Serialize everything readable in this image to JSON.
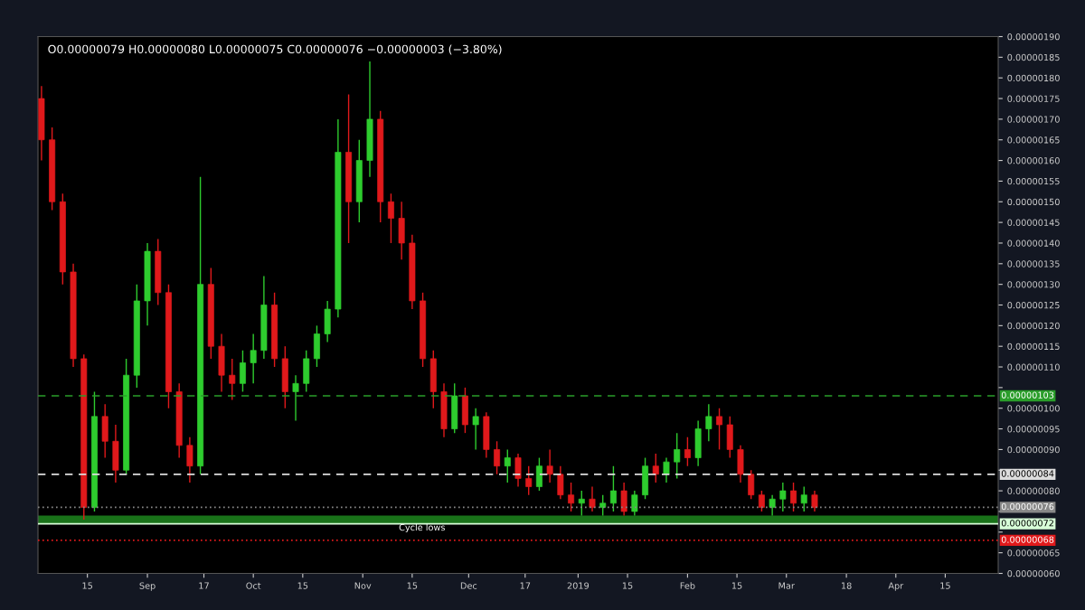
{
  "chart_data": {
    "type": "candlestick",
    "x": [
      "2018-08-02",
      "2018-08-05",
      "2018-08-08",
      "2018-08-11",
      "2018-08-14",
      "2018-08-17",
      "2018-08-20",
      "2018-08-23",
      "2018-08-26",
      "2018-08-29",
      "2018-09-01",
      "2018-09-04",
      "2018-09-07",
      "2018-09-10",
      "2018-09-13",
      "2018-09-16",
      "2018-09-19",
      "2018-09-22",
      "2018-09-25",
      "2018-09-28",
      "2018-10-01",
      "2018-10-04",
      "2018-10-07",
      "2018-10-10",
      "2018-10-13",
      "2018-10-16",
      "2018-10-19",
      "2018-10-22",
      "2018-10-25",
      "2018-10-28",
      "2018-10-31",
      "2018-11-03",
      "2018-11-06",
      "2018-11-09",
      "2018-11-12",
      "2018-11-15",
      "2018-11-18",
      "2018-11-21",
      "2018-11-24",
      "2018-11-27",
      "2018-11-30",
      "2018-12-03",
      "2018-12-06",
      "2018-12-09",
      "2018-12-12",
      "2018-12-15",
      "2018-12-18",
      "2018-12-21",
      "2018-12-24",
      "2018-12-27",
      "2018-12-30",
      "2019-01-02",
      "2019-01-05",
      "2019-01-08",
      "2019-01-11",
      "2019-01-14",
      "2019-01-17",
      "2019-01-20",
      "2019-01-23",
      "2019-01-26",
      "2019-01-29",
      "2019-02-01",
      "2019-02-04",
      "2019-02-07",
      "2019-02-10",
      "2019-02-13",
      "2019-02-16",
      "2019-02-19",
      "2019-02-22",
      "2019-02-25",
      "2019-02-28",
      "2019-03-03",
      "2019-03-06",
      "2019-03-09"
    ],
    "ohlc": [
      [
        1.75e-06,
        1.78e-06,
        1.6e-06,
        1.65e-06
      ],
      [
        1.65e-06,
        1.68e-06,
        1.48e-06,
        1.5e-06
      ],
      [
        1.5e-06,
        1.52e-06,
        1.3e-06,
        1.33e-06
      ],
      [
        1.33e-06,
        1.35e-06,
        1.1e-06,
        1.12e-06
      ],
      [
        1.12e-06,
        1.13e-06,
        7.3e-07,
        7.6e-07
      ],
      [
        7.6e-07,
        1.04e-06,
        7.5e-07,
        9.8e-07
      ],
      [
        9.8e-07,
        1.01e-06,
        8.8e-07,
        9.2e-07
      ],
      [
        9.2e-07,
        9.6e-07,
        8.2e-07,
        8.5e-07
      ],
      [
        8.5e-07,
        1.12e-06,
        8.4e-07,
        1.08e-06
      ],
      [
        1.08e-06,
        1.3e-06,
        1.05e-06,
        1.26e-06
      ],
      [
        1.26e-06,
        1.4e-06,
        1.2e-06,
        1.38e-06
      ],
      [
        1.38e-06,
        1.41e-06,
        1.25e-06,
        1.28e-06
      ],
      [
        1.28e-06,
        1.3e-06,
        1e-06,
        1.04e-06
      ],
      [
        1.04e-06,
        1.06e-06,
        8.8e-07,
        9.1e-07
      ],
      [
        9.1e-07,
        9.3e-07,
        8.2e-07,
        8.6e-07
      ],
      [
        8.6e-07,
        1.56e-06,
        8.4e-07,
        1.3e-06
      ],
      [
        1.3e-06,
        1.34e-06,
        1.12e-06,
        1.15e-06
      ],
      [
        1.15e-06,
        1.18e-06,
        1.04e-06,
        1.08e-06
      ],
      [
        1.08e-06,
        1.12e-06,
        1.02e-06,
        1.06e-06
      ],
      [
        1.06e-06,
        1.14e-06,
        1.04e-06,
        1.11e-06
      ],
      [
        1.11e-06,
        1.18e-06,
        1.06e-06,
        1.14e-06
      ],
      [
        1.14e-06,
        1.32e-06,
        1.12e-06,
        1.25e-06
      ],
      [
        1.25e-06,
        1.28e-06,
        1.1e-06,
        1.12e-06
      ],
      [
        1.12e-06,
        1.15e-06,
        1e-06,
        1.04e-06
      ],
      [
        1.04e-06,
        1.08e-06,
        9.7e-07,
        1.06e-06
      ],
      [
        1.06e-06,
        1.14e-06,
        1.04e-06,
        1.12e-06
      ],
      [
        1.12e-06,
        1.2e-06,
        1.1e-06,
        1.18e-06
      ],
      [
        1.18e-06,
        1.26e-06,
        1.16e-06,
        1.24e-06
      ],
      [
        1.24e-06,
        1.7e-06,
        1.22e-06,
        1.62e-06
      ],
      [
        1.62e-06,
        1.76e-06,
        1.4e-06,
        1.5e-06
      ],
      [
        1.5e-06,
        1.65e-06,
        1.45e-06,
        1.6e-06
      ],
      [
        1.6e-06,
        1.84e-06,
        1.56e-06,
        1.7e-06
      ],
      [
        1.7e-06,
        1.72e-06,
        1.45e-06,
        1.5e-06
      ],
      [
        1.5e-06,
        1.52e-06,
        1.4e-06,
        1.46e-06
      ],
      [
        1.46e-06,
        1.5e-06,
        1.36e-06,
        1.4e-06
      ],
      [
        1.4e-06,
        1.42e-06,
        1.24e-06,
        1.26e-06
      ],
      [
        1.26e-06,
        1.28e-06,
        1.1e-06,
        1.12e-06
      ],
      [
        1.12e-06,
        1.14e-06,
        1e-06,
        1.04e-06
      ],
      [
        1.04e-06,
        1.06e-06,
        9.3e-07,
        9.5e-07
      ],
      [
        9.5e-07,
        1.06e-06,
        9.4e-07,
        1.03e-06
      ],
      [
        1.03e-06,
        1.05e-06,
        9.4e-07,
        9.6e-07
      ],
      [
        9.6e-07,
        1e-06,
        9e-07,
        9.8e-07
      ],
      [
        9.8e-07,
        9.9e-07,
        8.8e-07,
        9e-07
      ],
      [
        9e-07,
        9.2e-07,
        8.4e-07,
        8.6e-07
      ],
      [
        8.6e-07,
        9e-07,
        8.2e-07,
        8.8e-07
      ],
      [
        8.8e-07,
        8.9e-07,
        8.1e-07,
        8.3e-07
      ],
      [
        8.3e-07,
        8.6e-07,
        7.9e-07,
        8.1e-07
      ],
      [
        8.1e-07,
        8.8e-07,
        8e-07,
        8.6e-07
      ],
      [
        8.6e-07,
        9e-07,
        8.2e-07,
        8.4e-07
      ],
      [
        8.4e-07,
        8.6e-07,
        7.8e-07,
        7.9e-07
      ],
      [
        7.9e-07,
        8.2e-07,
        7.5e-07,
        7.7e-07
      ],
      [
        7.7e-07,
        8e-07,
        7.4e-07,
        7.8e-07
      ],
      [
        7.8e-07,
        8.1e-07,
        7.5e-07,
        7.6e-07
      ],
      [
        7.6e-07,
        7.9e-07,
        7.4e-07,
        7.7e-07
      ],
      [
        7.7e-07,
        8.6e-07,
        7.5e-07,
        8e-07
      ],
      [
        8e-07,
        8.2e-07,
        7.4e-07,
        7.5e-07
      ],
      [
        7.5e-07,
        8e-07,
        7.4e-07,
        7.9e-07
      ],
      [
        7.9e-07,
        8.8e-07,
        7.8e-07,
        8.6e-07
      ],
      [
        8.6e-07,
        8.9e-07,
        8.2e-07,
        8.4e-07
      ],
      [
        8.4e-07,
        8.8e-07,
        8.2e-07,
        8.7e-07
      ],
      [
        8.7e-07,
        9.4e-07,
        8.3e-07,
        9e-07
      ],
      [
        9e-07,
        9.3e-07,
        8.6e-07,
        8.8e-07
      ],
      [
        8.8e-07,
        9.7e-07,
        8.6e-07,
        9.5e-07
      ],
      [
        9.5e-07,
        1.01e-06,
        9.2e-07,
        9.8e-07
      ],
      [
        9.8e-07,
        1e-06,
        9e-07,
        9.6e-07
      ],
      [
        9.6e-07,
        9.8e-07,
        8.8e-07,
        9e-07
      ],
      [
        9e-07,
        9.1e-07,
        8.2e-07,
        8.4e-07
      ],
      [
        8.4e-07,
        8.5e-07,
        7.8e-07,
        7.9e-07
      ],
      [
        7.9e-07,
        8e-07,
        7.5e-07,
        7.6e-07
      ],
      [
        7.6e-07,
        7.9e-07,
        7.4e-07,
        7.8e-07
      ],
      [
        7.8e-07,
        8.2e-07,
        7.5e-07,
        8e-07
      ],
      [
        8e-07,
        8.2e-07,
        7.5e-07,
        7.7e-07
      ],
      [
        7.7e-07,
        8.1e-07,
        7.5e-07,
        7.9e-07
      ],
      [
        7.9e-07,
        8e-07,
        7.5e-07,
        7.6e-07
      ]
    ],
    "colors": [
      "#e0191b",
      "#e0191b",
      "#e0191b",
      "#e0191b",
      "#e0191b",
      "#2ecc2e",
      "#e0191b",
      "#e0191b",
      "#2ecc2e",
      "#2ecc2e",
      "#2ecc2e",
      "#e0191b",
      "#e0191b",
      "#e0191b",
      "#e0191b",
      "#2ecc2e",
      "#e0191b",
      "#e0191b",
      "#e0191b",
      "#2ecc2e",
      "#2ecc2e",
      "#2ecc2e",
      "#e0191b",
      "#e0191b",
      "#2ecc2e",
      "#2ecc2e",
      "#2ecc2e",
      "#2ecc2e",
      "#2ecc2e",
      "#e0191b",
      "#2ecc2e",
      "#2ecc2e",
      "#e0191b",
      "#e0191b",
      "#e0191b",
      "#e0191b",
      "#e0191b",
      "#e0191b",
      "#e0191b",
      "#2ecc2e",
      "#e0191b",
      "#2ecc2e",
      "#e0191b",
      "#e0191b",
      "#2ecc2e",
      "#e0191b",
      "#e0191b",
      "#2ecc2e",
      "#e0191b",
      "#e0191b",
      "#e0191b",
      "#2ecc2e",
      "#e0191b",
      "#2ecc2e",
      "#2ecc2e",
      "#e0191b",
      "#2ecc2e",
      "#2ecc2e",
      "#e0191b",
      "#2ecc2e",
      "#2ecc2e",
      "#e0191b",
      "#2ecc2e",
      "#2ecc2e",
      "#e0191b",
      "#e0191b",
      "#e0191b",
      "#e0191b",
      "#e0191b",
      "#2ecc2e",
      "#2ecc2e",
      "#e0191b",
      "#2ecc2e",
      "#e0191b"
    ],
    "xlim": [
      "2018-08-01",
      "2019-04-30"
    ],
    "xticks": [
      {
        "value": "2018-08-15",
        "label": "15"
      },
      {
        "value": "2018-09-01",
        "label": "Sep"
      },
      {
        "value": "2018-09-17",
        "label": "17"
      },
      {
        "value": "2018-10-01",
        "label": "Oct"
      },
      {
        "value": "2018-10-15",
        "label": "15"
      },
      {
        "value": "2018-11-01",
        "label": "Nov"
      },
      {
        "value": "2018-11-15",
        "label": "15"
      },
      {
        "value": "2018-12-01",
        "label": "Dec"
      },
      {
        "value": "2018-12-17",
        "label": "17"
      },
      {
        "value": "2019-01-01",
        "label": "2019"
      },
      {
        "value": "2019-01-15",
        "label": "15"
      },
      {
        "value": "2019-02-01",
        "label": "Feb"
      },
      {
        "value": "2019-02-15",
        "label": "15"
      },
      {
        "value": "2019-03-01",
        "label": "Mar"
      },
      {
        "value": "2019-03-18",
        "label": "18"
      },
      {
        "value": "2019-04-01",
        "label": "Apr"
      },
      {
        "value": "2019-04-15",
        "label": "15"
      }
    ],
    "ylim": [
      6e-07,
      1.9e-06
    ],
    "yticks": [
      {
        "value": 6e-07,
        "label": "0.00000060"
      },
      {
        "value": 6.5e-07,
        "label": "0.00000065"
      },
      {
        "value": 7e-07,
        "label": null
      },
      {
        "value": 7.5e-07,
        "label": null
      },
      {
        "value": 8e-07,
        "label": "0.00000080"
      },
      {
        "value": 8.5e-07,
        "label": null
      },
      {
        "value": 9e-07,
        "label": "0.00000090"
      },
      {
        "value": 9.5e-07,
        "label": "0.00000095"
      },
      {
        "value": 1e-06,
        "label": "0.00000100"
      },
      {
        "value": 1.05e-06,
        "label": null
      },
      {
        "value": 1.1e-06,
        "label": "0.00000110"
      },
      {
        "value": 1.15e-06,
        "label": "0.00000115"
      },
      {
        "value": 1.2e-06,
        "label": "0.00000120"
      },
      {
        "value": 1.25e-06,
        "label": "0.00000125"
      },
      {
        "value": 1.3e-06,
        "label": "0.00000130"
      },
      {
        "value": 1.35e-06,
        "label": "0.00000135"
      },
      {
        "value": 1.4e-06,
        "label": "0.00000140"
      },
      {
        "value": 1.45e-06,
        "label": "0.00000145"
      },
      {
        "value": 1.5e-06,
        "label": "0.00000150"
      },
      {
        "value": 1.55e-06,
        "label": "0.00000155"
      },
      {
        "value": 1.6e-06,
        "label": "0.00000160"
      },
      {
        "value": 1.65e-06,
        "label": "0.00000165"
      },
      {
        "value": 1.7e-06,
        "label": "0.00000170"
      },
      {
        "value": 1.75e-06,
        "label": "0.00000175"
      },
      {
        "value": 1.8e-06,
        "label": "0.00000180"
      },
      {
        "value": 1.85e-06,
        "label": "0.00000185"
      },
      {
        "value": 1.9e-06,
        "label": "0.00000190"
      }
    ],
    "ref_lines": [
      {
        "axis": "y",
        "value": 1.03e-06,
        "label": "0.00000103",
        "color": "#2a9d2a",
        "line_style": "dashed"
      },
      {
        "axis": "y",
        "value": 8.4e-07,
        "label": "0.00000084",
        "color": "#dddddd",
        "line_style": "dashed"
      },
      {
        "axis": "y",
        "value": 7.6e-07,
        "label": "0.00000076",
        "color": "#888888",
        "line_style": "dotted"
      },
      {
        "axis": "y",
        "value": 7.2e-07,
        "label": "0.00000072",
        "color": "#d8ffd8",
        "line_style": "solid"
      },
      {
        "axis": "y",
        "value": 6.8e-07,
        "label": "0.00000068",
        "color": "#e0191b",
        "line_style": "dotted"
      }
    ],
    "bands": [
      {
        "axis": "y",
        "from": 7.2e-07,
        "to": 7.4e-07,
        "label": "Cycle lows",
        "color": "#1f8f1f"
      }
    ],
    "annotations": [
      "O0.00000079 H0.00000080 L0.00000075 C0.00000076 −0.00000003 (−3.80%)"
    ],
    "grid": false,
    "legend": false
  }
}
